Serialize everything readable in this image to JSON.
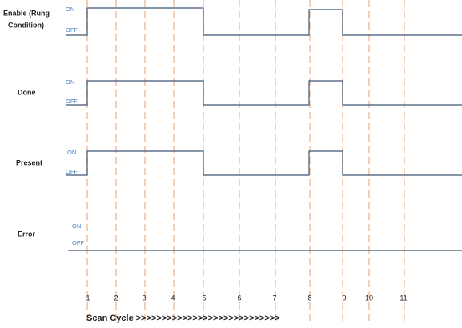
{
  "signals": [
    {
      "label": [
        "Enable (Rung",
        "Condition)"
      ],
      "on": "ON",
      "off": "OFF"
    },
    {
      "label": [
        "Done"
      ],
      "on": "ON",
      "off": "OFF"
    },
    {
      "label": [
        "Present"
      ],
      "on": "ON",
      "off": "OFF"
    },
    {
      "label": [
        "Error"
      ],
      "on": "ON",
      "off": "OFF"
    }
  ],
  "scan_cycles": [
    "1",
    "2",
    "3",
    "4",
    "5",
    "6",
    "7",
    "8",
    "9",
    "10",
    "11"
  ],
  "axis_label": "Scan Cycle >>>>>>>>>>>>>>>>>>>>>>>>>>>>"
}
